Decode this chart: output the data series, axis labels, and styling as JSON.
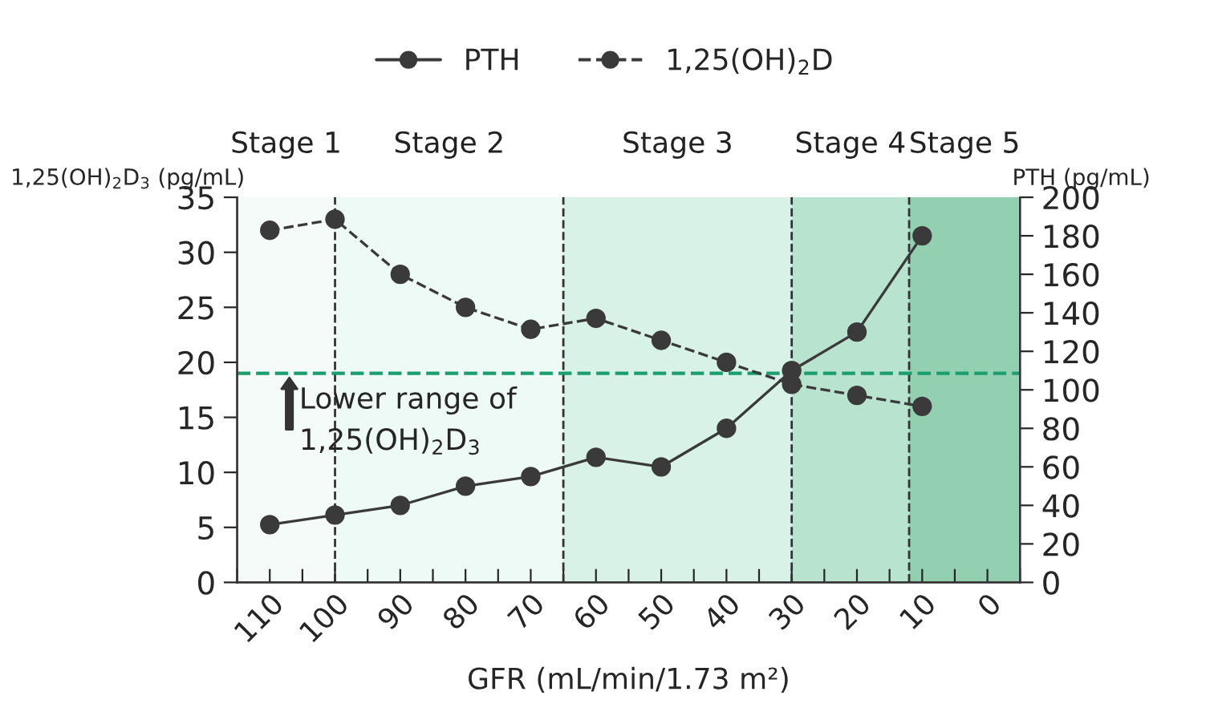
{
  "chart_data": {
    "type": "line",
    "xlabel": "GFR (mL/min/1.73 m²)",
    "ylabel": "1,25(OH)$_{2}$D$_{3}$ (pg/mL)",
    "y2label": "PTH (pg/mL)",
    "x": [
      110,
      100,
      90,
      80,
      70,
      60,
      50,
      40,
      30,
      20,
      10
    ],
    "series": [
      {
        "name": "PTH",
        "color": "#3a3a3a",
        "axis": "y2",
        "line_style": "solid",
        "values": [
          30,
          35,
          40,
          50,
          55,
          65,
          60,
          80,
          110,
          130,
          180
        ]
      },
      {
        "name": "1,25(OH)$_{2}$D",
        "color": "#3a3a3a",
        "line_style": "dashed",
        "values": [
          32,
          33,
          28,
          25,
          23,
          24,
          22,
          20,
          18,
          17,
          16
        ]
      }
    ],
    "marker": "circle",
    "xlim": [
      115,
      -5
    ],
    "xticks": [
      110,
      100,
      90,
      80,
      70,
      60,
      50,
      40,
      30,
      20,
      10,
      0,
      {
        "value": 115,
        "label": null
      },
      {
        "value": 105,
        "label": null
      },
      {
        "value": 95,
        "label": null
      },
      {
        "value": 85,
        "label": null
      },
      {
        "value": 75,
        "label": null
      },
      {
        "value": 65,
        "label": null
      },
      {
        "value": 55,
        "label": null
      },
      {
        "value": 45,
        "label": null
      },
      {
        "value": 35,
        "label": null
      },
      {
        "value": 25,
        "label": null
      },
      {
        "value": 15,
        "label": null
      },
      {
        "value": 5,
        "label": null
      },
      {
        "value": -5,
        "label": null
      }
    ],
    "ylim": [
      0,
      35
    ],
    "yticks": [
      0,
      5,
      10,
      15,
      20,
      25,
      30,
      35
    ],
    "y2lim": [
      0,
      200
    ],
    "y2ticks": [
      0,
      20,
      40,
      60,
      80,
      100,
      120,
      140,
      160,
      180,
      200
    ],
    "bands": [
      {
        "axis": "x",
        "from": 115,
        "to": 100,
        "label": "Stage 1",
        "color": "#f5fbf8"
      },
      {
        "axis": "x",
        "from": 100,
        "to": 65,
        "label": "Stage 2",
        "color": "#eefaf5"
      },
      {
        "axis": "x",
        "from": 65,
        "to": 30,
        "label": "Stage 3",
        "color": "#d9f2e7"
      },
      {
        "axis": "x",
        "from": 30,
        "to": 12,
        "label": "Stage 4",
        "color": "#b8e3cf"
      },
      {
        "axis": "x",
        "from": 12,
        "to": -5,
        "label": "Stage 5",
        "color": "#93d0b2"
      }
    ],
    "ref_lines": [
      {
        "axis": "x",
        "value": 100,
        "color": "#333333",
        "line_style": "dashed"
      },
      {
        "axis": "x",
        "value": 65,
        "color": "#333333",
        "line_style": "dashed"
      },
      {
        "axis": "x",
        "value": 30,
        "color": "#333333",
        "line_style": "dashed"
      },
      {
        "axis": "x",
        "value": 12,
        "color": "#333333",
        "line_style": "dashed"
      },
      {
        "axis": "y",
        "value": 19,
        "color": "#1a9e6e",
        "line_style": "dashed"
      }
    ],
    "annotations": [
      {
        "text": "Lower range of\n1,25(OH)$_{2}$D$_{3}$",
        "x": 107,
        "y": 19
      }
    ],
    "grid": false,
    "legend": "top"
  }
}
